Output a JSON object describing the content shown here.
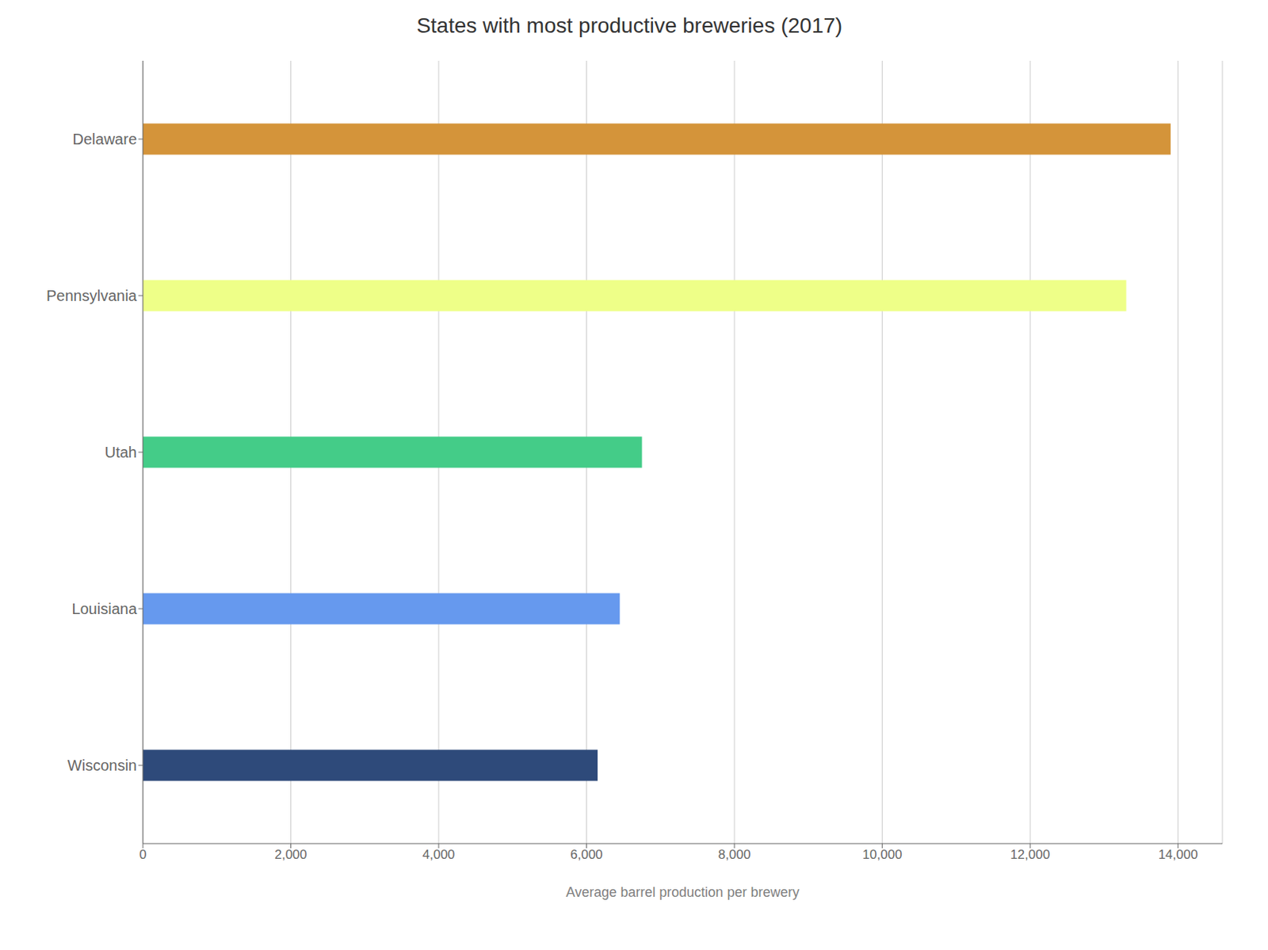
{
  "chart_data": {
    "type": "bar",
    "orientation": "horizontal",
    "title": "States with most productive breweries (2017)",
    "xlabel": "Average barrel production per brewery",
    "categories": [
      "Wisconsin",
      "Louisiana",
      "Utah",
      "Pennsylvania",
      "Delaware"
    ],
    "values": [
      6150,
      6450,
      6750,
      13300,
      13900
    ],
    "colors": [
      "#2e4a7a",
      "#6699ee",
      "#44cc88",
      "#eeff88",
      "#d4943a"
    ],
    "xlim": [
      0,
      14600
    ],
    "xticks": [
      0,
      {
        "value": 2000,
        "label": "2,000"
      },
      {
        "value": 4000,
        "label": "4,000"
      },
      {
        "value": 6000,
        "label": "6,000"
      },
      {
        "value": 8000,
        "label": "8,000"
      },
      {
        "value": 10000,
        "label": "10,000"
      },
      {
        "value": 12000,
        "label": "12,000"
      },
      {
        "value": 14000,
        "label": "14,000"
      }
    ],
    "grid": true
  }
}
